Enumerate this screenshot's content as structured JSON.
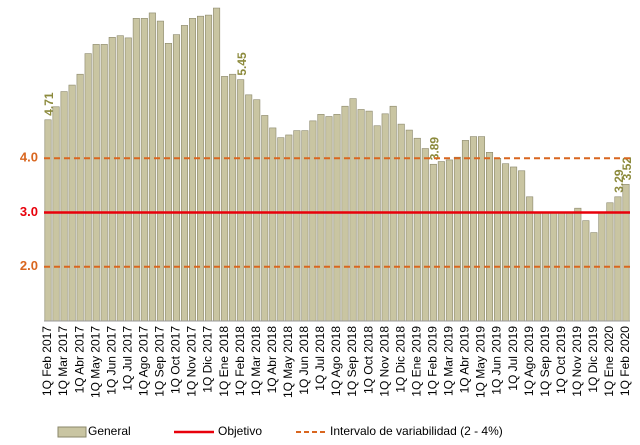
{
  "chart_data": {
    "type": "bar",
    "categories": [
      "1Q Feb 2017",
      null,
      "1Q Mar 2017",
      null,
      "1Q Abr 2017",
      null,
      "1Q May 2017",
      null,
      "1Q Jun 2017",
      null,
      "1Q Jul 2017",
      null,
      "1Q Ago 2017",
      null,
      "1Q Sep 2017",
      null,
      "1Q Oct 2017",
      null,
      "1Q Nov 2017",
      null,
      "1Q Dic 2017",
      null,
      "1Q Ene 2018",
      null,
      "1Q Feb 2018",
      null,
      "1Q Mar 2018",
      null,
      "1Q Abr 2018",
      null,
      "1Q May 2018",
      null,
      "1Q Jun 2018",
      null,
      "1Q Jul 2018",
      null,
      "1Q Ago 2018",
      null,
      "1Q Sep 2018",
      null,
      "1Q Oct 2018",
      null,
      "1Q Nov 2018",
      null,
      "1Q Dic 2018",
      null,
      "1Q Ene 2019",
      null,
      "1Q Feb 2019",
      null,
      "1Q Mar 2019",
      null,
      "1Q Abr 2019",
      null,
      "1Q May 2019",
      null,
      "1Q Jun 2019",
      null,
      "1Q Jul 2019",
      null,
      "1Q Ago 2019",
      null,
      "1Q Sep 2019",
      null,
      "1Q Oct 2019",
      null,
      "1Q Nov 2019",
      null,
      "1Q Dic 2019",
      null,
      "1Q Ene 2020",
      null,
      "1Q Feb 2020"
    ],
    "series": [
      {
        "name": "General",
        "color": "#c9c5a2",
        "values": [
          4.71,
          4.95,
          5.23,
          5.35,
          5.55,
          5.93,
          6.1,
          6.1,
          6.23,
          6.26,
          6.22,
          6.58,
          6.58,
          6.68,
          6.53,
          6.12,
          6.28,
          6.45,
          6.58,
          6.62,
          6.64,
          6.77,
          5.51,
          5.55,
          5.45,
          5.17,
          5.08,
          4.79,
          4.56,
          4.38,
          4.43,
          4.51,
          4.51,
          4.69,
          4.81,
          4.77,
          4.81,
          4.96,
          5.1,
          4.9,
          4.87,
          4.6,
          4.82,
          4.96,
          4.63,
          4.52,
          4.37,
          4.18,
          3.89,
          3.94,
          3.97,
          4.02,
          4.33,
          4.4,
          4.4,
          4.11,
          4.0,
          3.9,
          3.84,
          3.77,
          3.29,
          3.0,
          2.99,
          3.01,
          3.0,
          3.01,
          3.08,
          2.85,
          2.63,
          3.0,
          3.18,
          3.29,
          3.52
        ],
        "value_labels": [
          "4.71",
          null,
          null,
          null,
          null,
          null,
          null,
          null,
          null,
          null,
          null,
          null,
          null,
          null,
          null,
          null,
          null,
          null,
          null,
          null,
          null,
          null,
          null,
          null,
          "5.45",
          null,
          null,
          null,
          null,
          null,
          null,
          null,
          null,
          null,
          null,
          null,
          null,
          null,
          null,
          null,
          null,
          null,
          null,
          null,
          null,
          null,
          null,
          null,
          "3.89",
          null,
          null,
          null,
          null,
          null,
          null,
          null,
          null,
          null,
          null,
          null,
          null,
          null,
          null,
          null,
          null,
          null,
          null,
          null,
          null,
          null,
          null,
          "3.29",
          "3.52"
        ]
      }
    ],
    "target": {
      "name": "Objetivo",
      "value": 3,
      "color": "#e8000b"
    },
    "interval": {
      "name": "Intervalo de variabilidad (2 - 4%)",
      "values": [
        2,
        4
      ],
      "color": "#d9661f"
    },
    "ylim": [
      1,
      6.9
    ],
    "yticks": [
      {
        "value": 2,
        "label": "2.0"
      },
      {
        "value": 3,
        "label": "3.0"
      },
      {
        "value": 4,
        "label": "4.0"
      }
    ]
  }
}
